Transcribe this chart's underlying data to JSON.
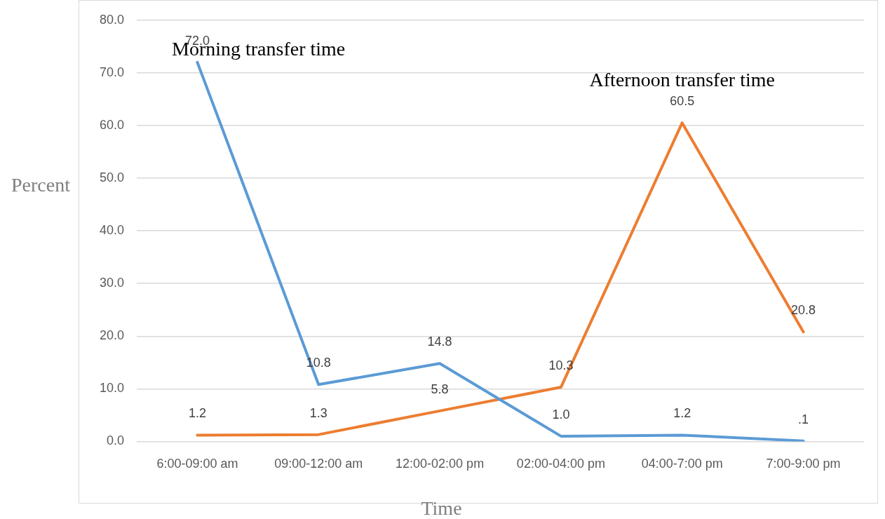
{
  "chart_data": {
    "type": "line",
    "xlabel": "Time",
    "ylabel": "Percent",
    "categories": [
      "6:00-09:00 am",
      "09:00-12:00 am",
      "12:00-02:00 pm",
      "02:00-04:00 pm",
      "04:00-7:00 pm",
      "7:00-9:00 pm"
    ],
    "series": [
      {
        "name": "Morning transfer time",
        "color": "#5b9bd5",
        "values": [
          72.0,
          10.8,
          14.8,
          1.0,
          1.2,
          0.1
        ],
        "value_labels": [
          "72.0",
          "10.8",
          "14.8",
          "1.0",
          "1.2",
          ".1"
        ]
      },
      {
        "name": "Afternoon transfer time",
        "color": "#ed7d31",
        "values": [
          1.2,
          1.3,
          5.8,
          10.3,
          60.5,
          20.8
        ],
        "value_labels": [
          "1.2",
          "1.3",
          "5.8",
          "10.3",
          "60.5",
          "20.8"
        ]
      }
    ],
    "ylim": [
      0,
      80
    ],
    "yticks": [
      {
        "value": 0,
        "label": "0.0"
      },
      {
        "value": 10,
        "label": "10.0"
      },
      {
        "value": 20,
        "label": "20.0"
      },
      {
        "value": 30,
        "label": "30.0"
      },
      {
        "value": 40,
        "label": "40.0"
      },
      {
        "value": 50,
        "label": "50.0"
      },
      {
        "value": 60,
        "label": "60.0"
      },
      {
        "value": 70,
        "label": "70.0"
      },
      {
        "value": 80,
        "label": "80.0"
      }
    ],
    "grid": "y",
    "legend": false,
    "marker": "none",
    "line_style": "solid"
  }
}
